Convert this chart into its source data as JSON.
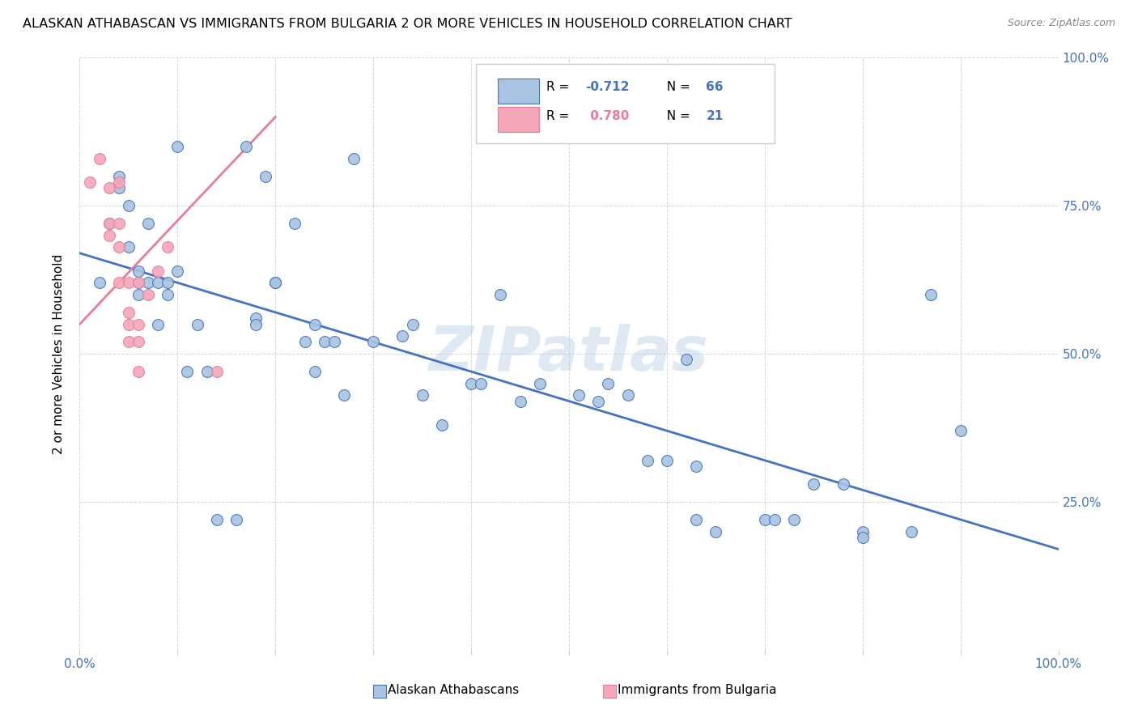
{
  "title": "ALASKAN ATHABASCAN VS IMMIGRANTS FROM BULGARIA 2 OR MORE VEHICLES IN HOUSEHOLD CORRELATION CHART",
  "source": "Source: ZipAtlas.com",
  "ylabel": "2 or more Vehicles in Household",
  "ytick_labels": [
    "",
    "25.0%",
    "50.0%",
    "75.0%",
    "100.0%"
  ],
  "ytick_values": [
    0,
    0.25,
    0.5,
    0.75,
    1.0
  ],
  "xlim": [
    0,
    1.0
  ],
  "ylim": [
    0,
    1.0
  ],
  "watermark": "ZIPatlas",
  "blue_color": "#a8c4e0",
  "blue_line_color": "#4472c4",
  "pink_color": "#f4a7b9",
  "pink_line_color": "#e87c99",
  "blue_scatter": [
    [
      0.02,
      0.62
    ],
    [
      0.03,
      0.72
    ],
    [
      0.04,
      0.8
    ],
    [
      0.04,
      0.78
    ],
    [
      0.05,
      0.68
    ],
    [
      0.05,
      0.75
    ],
    [
      0.06,
      0.64
    ],
    [
      0.06,
      0.62
    ],
    [
      0.06,
      0.6
    ],
    [
      0.07,
      0.62
    ],
    [
      0.07,
      0.72
    ],
    [
      0.08,
      0.55
    ],
    [
      0.08,
      0.62
    ],
    [
      0.09,
      0.62
    ],
    [
      0.09,
      0.6
    ],
    [
      0.1,
      0.64
    ],
    [
      0.1,
      0.85
    ],
    [
      0.11,
      0.47
    ],
    [
      0.12,
      0.55
    ],
    [
      0.13,
      0.47
    ],
    [
      0.14,
      0.22
    ],
    [
      0.16,
      0.22
    ],
    [
      0.17,
      0.85
    ],
    [
      0.18,
      0.56
    ],
    [
      0.18,
      0.55
    ],
    [
      0.19,
      0.8
    ],
    [
      0.2,
      0.62
    ],
    [
      0.2,
      0.62
    ],
    [
      0.22,
      0.72
    ],
    [
      0.23,
      0.52
    ],
    [
      0.24,
      0.55
    ],
    [
      0.24,
      0.47
    ],
    [
      0.25,
      0.52
    ],
    [
      0.26,
      0.52
    ],
    [
      0.27,
      0.43
    ],
    [
      0.28,
      0.83
    ],
    [
      0.3,
      0.52
    ],
    [
      0.33,
      0.53
    ],
    [
      0.34,
      0.55
    ],
    [
      0.35,
      0.43
    ],
    [
      0.37,
      0.38
    ],
    [
      0.4,
      0.45
    ],
    [
      0.41,
      0.45
    ],
    [
      0.43,
      0.6
    ],
    [
      0.45,
      0.42
    ],
    [
      0.47,
      0.45
    ],
    [
      0.51,
      0.43
    ],
    [
      0.53,
      0.42
    ],
    [
      0.54,
      0.45
    ],
    [
      0.56,
      0.43
    ],
    [
      0.58,
      0.32
    ],
    [
      0.6,
      0.32
    ],
    [
      0.62,
      0.49
    ],
    [
      0.63,
      0.31
    ],
    [
      0.63,
      0.22
    ],
    [
      0.65,
      0.2
    ],
    [
      0.7,
      0.22
    ],
    [
      0.71,
      0.22
    ],
    [
      0.73,
      0.22
    ],
    [
      0.75,
      0.28
    ],
    [
      0.78,
      0.28
    ],
    [
      0.8,
      0.2
    ],
    [
      0.8,
      0.19
    ],
    [
      0.85,
      0.2
    ],
    [
      0.87,
      0.6
    ],
    [
      0.9,
      0.37
    ]
  ],
  "pink_scatter": [
    [
      0.01,
      0.79
    ],
    [
      0.02,
      0.83
    ],
    [
      0.03,
      0.7
    ],
    [
      0.03,
      0.78
    ],
    [
      0.03,
      0.72
    ],
    [
      0.04,
      0.79
    ],
    [
      0.04,
      0.72
    ],
    [
      0.04,
      0.68
    ],
    [
      0.04,
      0.62
    ],
    [
      0.05,
      0.62
    ],
    [
      0.05,
      0.57
    ],
    [
      0.05,
      0.55
    ],
    [
      0.05,
      0.52
    ],
    [
      0.06,
      0.62
    ],
    [
      0.06,
      0.55
    ],
    [
      0.06,
      0.52
    ],
    [
      0.06,
      0.47
    ],
    [
      0.07,
      0.6
    ],
    [
      0.08,
      0.64
    ],
    [
      0.09,
      0.68
    ],
    [
      0.14,
      0.47
    ]
  ],
  "blue_line_x": [
    0.0,
    1.0
  ],
  "blue_line_y": [
    0.67,
    0.17
  ],
  "pink_line_x": [
    0.0,
    0.2
  ],
  "pink_line_y": [
    0.55,
    0.9
  ]
}
